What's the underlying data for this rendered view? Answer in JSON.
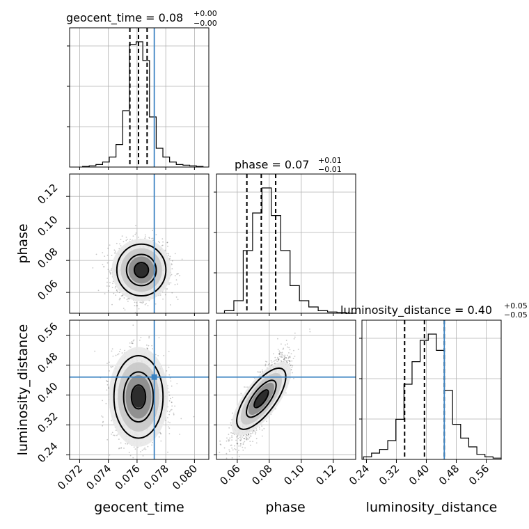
{
  "colors": {
    "truth": "#3c83c2",
    "ink": "#000000",
    "grid": "#b0b0b0"
  },
  "chart_data": {
    "type": "corner",
    "parameters": [
      {
        "name": "geocent_time",
        "title_main": "geocent_time = 0.08",
        "title_plus": "+0.00",
        "title_minus": "−0.00",
        "range": [
          0.0713,
          0.081
        ],
        "ticks": [
          "0.072",
          "0.074",
          "0.076",
          "0.078",
          "0.080"
        ],
        "tick_values": [
          0.072,
          0.074,
          0.076,
          0.078,
          0.08
        ],
        "truth": 0.0772,
        "quantiles": [
          0.0755,
          0.0761,
          0.0767
        ],
        "hist_values": [
          0.005,
          0.01,
          0.02,
          0.04,
          0.08,
          0.18,
          0.45,
          0.98,
          1.0,
          0.85,
          0.4,
          0.15,
          0.08,
          0.04,
          0.02,
          0.015,
          0.01,
          0.005
        ]
      },
      {
        "name": "phase",
        "title_main": "phase = 0.07",
        "title_plus": "+0.01",
        "title_minus": "−0.01",
        "range": [
          0.047,
          0.134
        ],
        "ticks": [
          "0.06",
          "0.08",
          "0.10",
          "0.12"
        ],
        "tick_values": [
          0.06,
          0.08,
          0.1,
          0.12
        ],
        "truth": null,
        "quantiles": [
          0.066,
          0.075,
          0.084
        ],
        "hist_values": [
          0.02,
          0.1,
          0.5,
          0.8,
          1.0,
          0.78,
          0.5,
          0.22,
          0.1,
          0.05,
          0.02,
          0.01,
          0.005,
          0.0
        ]
      },
      {
        "name": "luminosity_distance",
        "title_main": "luminosity_distance = 0.40",
        "title_plus": "+0.05",
        "title_minus": "−0.05",
        "range": [
          0.228,
          0.6
        ],
        "ticks": [
          "0.24",
          "0.32",
          "0.40",
          "0.48",
          "0.56"
        ],
        "tick_values": [
          0.24,
          0.32,
          0.4,
          0.48,
          0.56
        ],
        "truth": 0.448,
        "quantiles": [
          0.342,
          0.395,
          0.448
        ],
        "hist_values": [
          0.02,
          0.05,
          0.08,
          0.15,
          0.32,
          0.6,
          0.78,
          0.95,
          1.0,
          0.87,
          0.55,
          0.28,
          0.17,
          0.1,
          0.04,
          0.02,
          0.01
        ]
      }
    ],
    "joint": [
      {
        "x": "geocent_time",
        "y": "phase",
        "center": [
          0.0763,
          0.074
        ],
        "spread": [
          0.0009,
          0.0085
        ],
        "corr": 0.0
      },
      {
        "x": "geocent_time",
        "y": "luminosity_distance",
        "center": [
          0.0761,
          0.395
        ],
        "spread": [
          0.0009,
          0.058
        ],
        "corr": 0.0
      },
      {
        "x": "phase",
        "y": "luminosity_distance",
        "center": [
          0.075,
          0.39
        ],
        "spread": [
          0.0085,
          0.058
        ],
        "corr": 0.85
      }
    ],
    "truth_point": {
      "geocent_time": 0.0772,
      "luminosity_distance": 0.448
    }
  }
}
